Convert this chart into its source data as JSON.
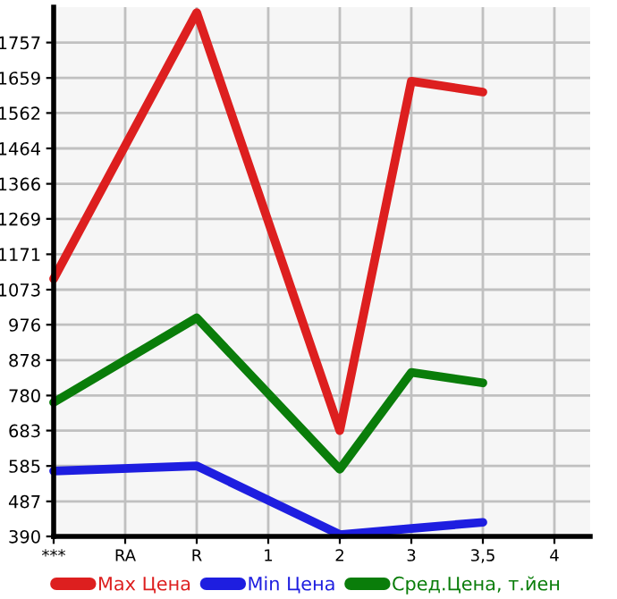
{
  "chart_data": {
    "type": "line",
    "categories": [
      "***",
      "RA",
      "R",
      "1",
      "2",
      "3",
      "3,5",
      "4"
    ],
    "series": [
      {
        "name": "Max Цена",
        "color": "#dd1f1f",
        "values": [
          1103,
          null,
          1840,
          null,
          683,
          1650,
          1620,
          null
        ]
      },
      {
        "name": "Min Цена",
        "color": "#1e1ee0",
        "values": [
          571,
          null,
          585,
          null,
          395,
          412,
          429,
          null
        ]
      },
      {
        "name": "Сред.Цена, т.йен",
        "color": "#0a7d0a",
        "values": [
          761,
          null,
          995,
          null,
          576,
          844,
          815,
          null
        ]
      }
    ],
    "ylim": [
      390,
      1855
    ],
    "yticks": [
      390,
      487,
      585,
      683,
      780,
      878,
      976,
      1073,
      1171,
      1269,
      1366,
      1464,
      1562,
      1659,
      1757
    ],
    "grid": true,
    "legend": "bottom",
    "marker": "none",
    "line_style": "solid"
  }
}
